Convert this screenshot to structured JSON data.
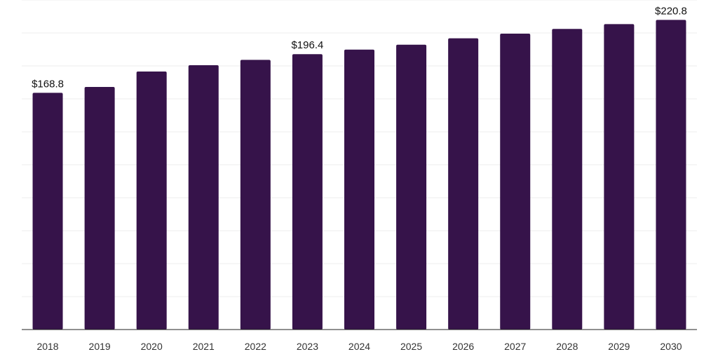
{
  "chart_data": {
    "type": "bar",
    "title": "",
    "xlabel": "",
    "ylabel": "",
    "categories": [
      "2018",
      "2019",
      "2020",
      "2021",
      "2022",
      "2023",
      "2024",
      "2025",
      "2026",
      "2027",
      "2028",
      "2029",
      "2030"
    ],
    "values": [
      168.8,
      173.0,
      184.0,
      188.5,
      192.3,
      196.4,
      199.6,
      203.1,
      207.7,
      211.0,
      214.4,
      217.8,
      220.8
    ],
    "data_labels": {
      "0": "$168.8",
      "5": "$196.4",
      "12": "$220.8"
    },
    "ylim": [
      0,
      235
    ],
    "gridlines": true,
    "bar_color": "#36134a"
  }
}
